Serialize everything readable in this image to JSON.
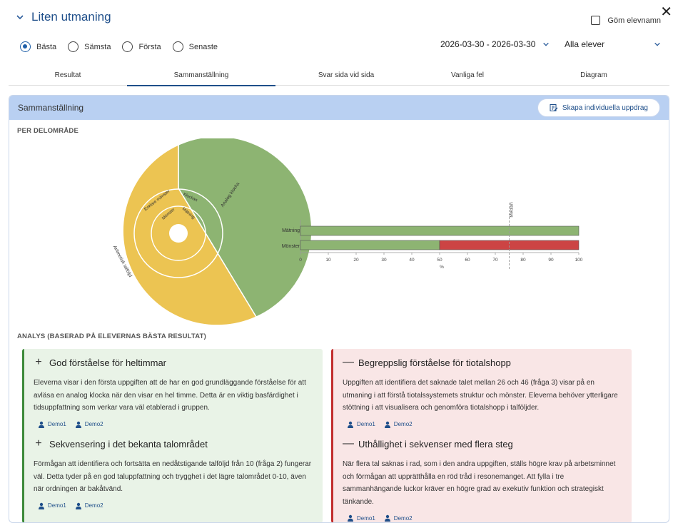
{
  "header": {
    "title": "Liten utmaning",
    "hide_names_label": "Göm elevnamn",
    "close_symbol": "✕"
  },
  "filters": {
    "radios": [
      {
        "label": "Bästa",
        "selected": true
      },
      {
        "label": "Sämsta",
        "selected": false
      },
      {
        "label": "Första",
        "selected": false
      },
      {
        "label": "Senaste",
        "selected": false
      }
    ],
    "date_range": "2026-03-30 - 2026-03-30",
    "students": "Alla elever"
  },
  "tabs": [
    "Resultat",
    "Sammanställning",
    "Svar sida vid sida",
    "Vanliga fel",
    "Diagram"
  ],
  "active_tab": 1,
  "card": {
    "title": "Sammanställning",
    "create_button": "Skapa individuella uppdrag"
  },
  "per_area_label": "PER DELOMRÅDE",
  "sunburst": {
    "inner": [
      {
        "label": "Mätning",
        "color": "#8db472"
      },
      {
        "label": "Mönster",
        "color": "#ecc452"
      }
    ],
    "middle": [
      {
        "label": "Klockan",
        "color": "#8db472"
      },
      {
        "label": "Enklare mönster",
        "color": "#ecc452"
      }
    ],
    "outer": [
      {
        "label": "Analog klocka",
        "color": "#8db472"
      },
      {
        "label": "Aritmetisk talföljd",
        "color": "#ecc452"
      }
    ]
  },
  "chart_data": {
    "type": "bar",
    "orientation": "horizontal",
    "stacked": true,
    "categories": [
      "Mätning",
      "Mönster"
    ],
    "series": [
      {
        "name": "",
        "color": "#8db472",
        "values": [
          100,
          50
        ]
      },
      {
        "name": "",
        "color": "#cc4444",
        "values": [
          0,
          50
        ]
      }
    ],
    "xlim": [
      0,
      100
    ],
    "xticks": [
      "0",
      "10",
      "20",
      "30",
      "40",
      "50",
      "60",
      "70",
      "80",
      "90",
      "100"
    ],
    "xlabel": "%",
    "median_label": "Median",
    "median_value": 75
  },
  "analysis_label": "ANALYS (BASERAD PÅ ELEVERNAS BÄSTA RESULTAT)",
  "strengths": [
    {
      "sign": "+",
      "title": "God förståelse för heltimmar",
      "text": "Eleverna visar i den första uppgiften att de har en god grundläggande förståelse för att avläsa en analog klocka när den visar en hel timme. Detta är en viktig basfärdighet i tidsuppfattning som verkar vara väl etablerad i gruppen.",
      "students": [
        "Demo1",
        "Demo2"
      ]
    },
    {
      "sign": "+",
      "title": "Sekvensering i det bekanta talområdet",
      "text": "Förmågan att identifiera och fortsätta en nedåtstigande talföljd från 10 (fråga 2) fungerar väl. Detta tyder på en god taluppfattning och trygghet i det lägre talområdet 0-10, även när ordningen är bakåtvänd.",
      "students": [
        "Demo1",
        "Demo2"
      ]
    }
  ],
  "weaknesses": [
    {
      "sign": "—",
      "title": "Begreppslig förståelse för tiotalshopp",
      "text": "Uppgiften att identifiera det saknade talet mellan 26 och 46 (fråga 3) visar på en utmaning i att förstå tiotalssystemets struktur och mönster. Eleverna behöver ytterligare stöttning i att visualisera och genomföra tiotalshopp i talföljder.",
      "students": [
        "Demo1",
        "Demo2"
      ]
    },
    {
      "sign": "—",
      "title": "Uthållighet i sekvenser med flera steg",
      "text": "När flera tal saknas i rad, som i den andra uppgiften, ställs högre krav på arbetsminnet och förmågan att upprätthålla en röd tråd i resonemanget. Att fylla i tre sammanhängande luckor kräver en högre grad av exekutiv funktion och strategiskt tänkande.",
      "students": [
        "Demo1",
        "Demo2"
      ]
    }
  ]
}
